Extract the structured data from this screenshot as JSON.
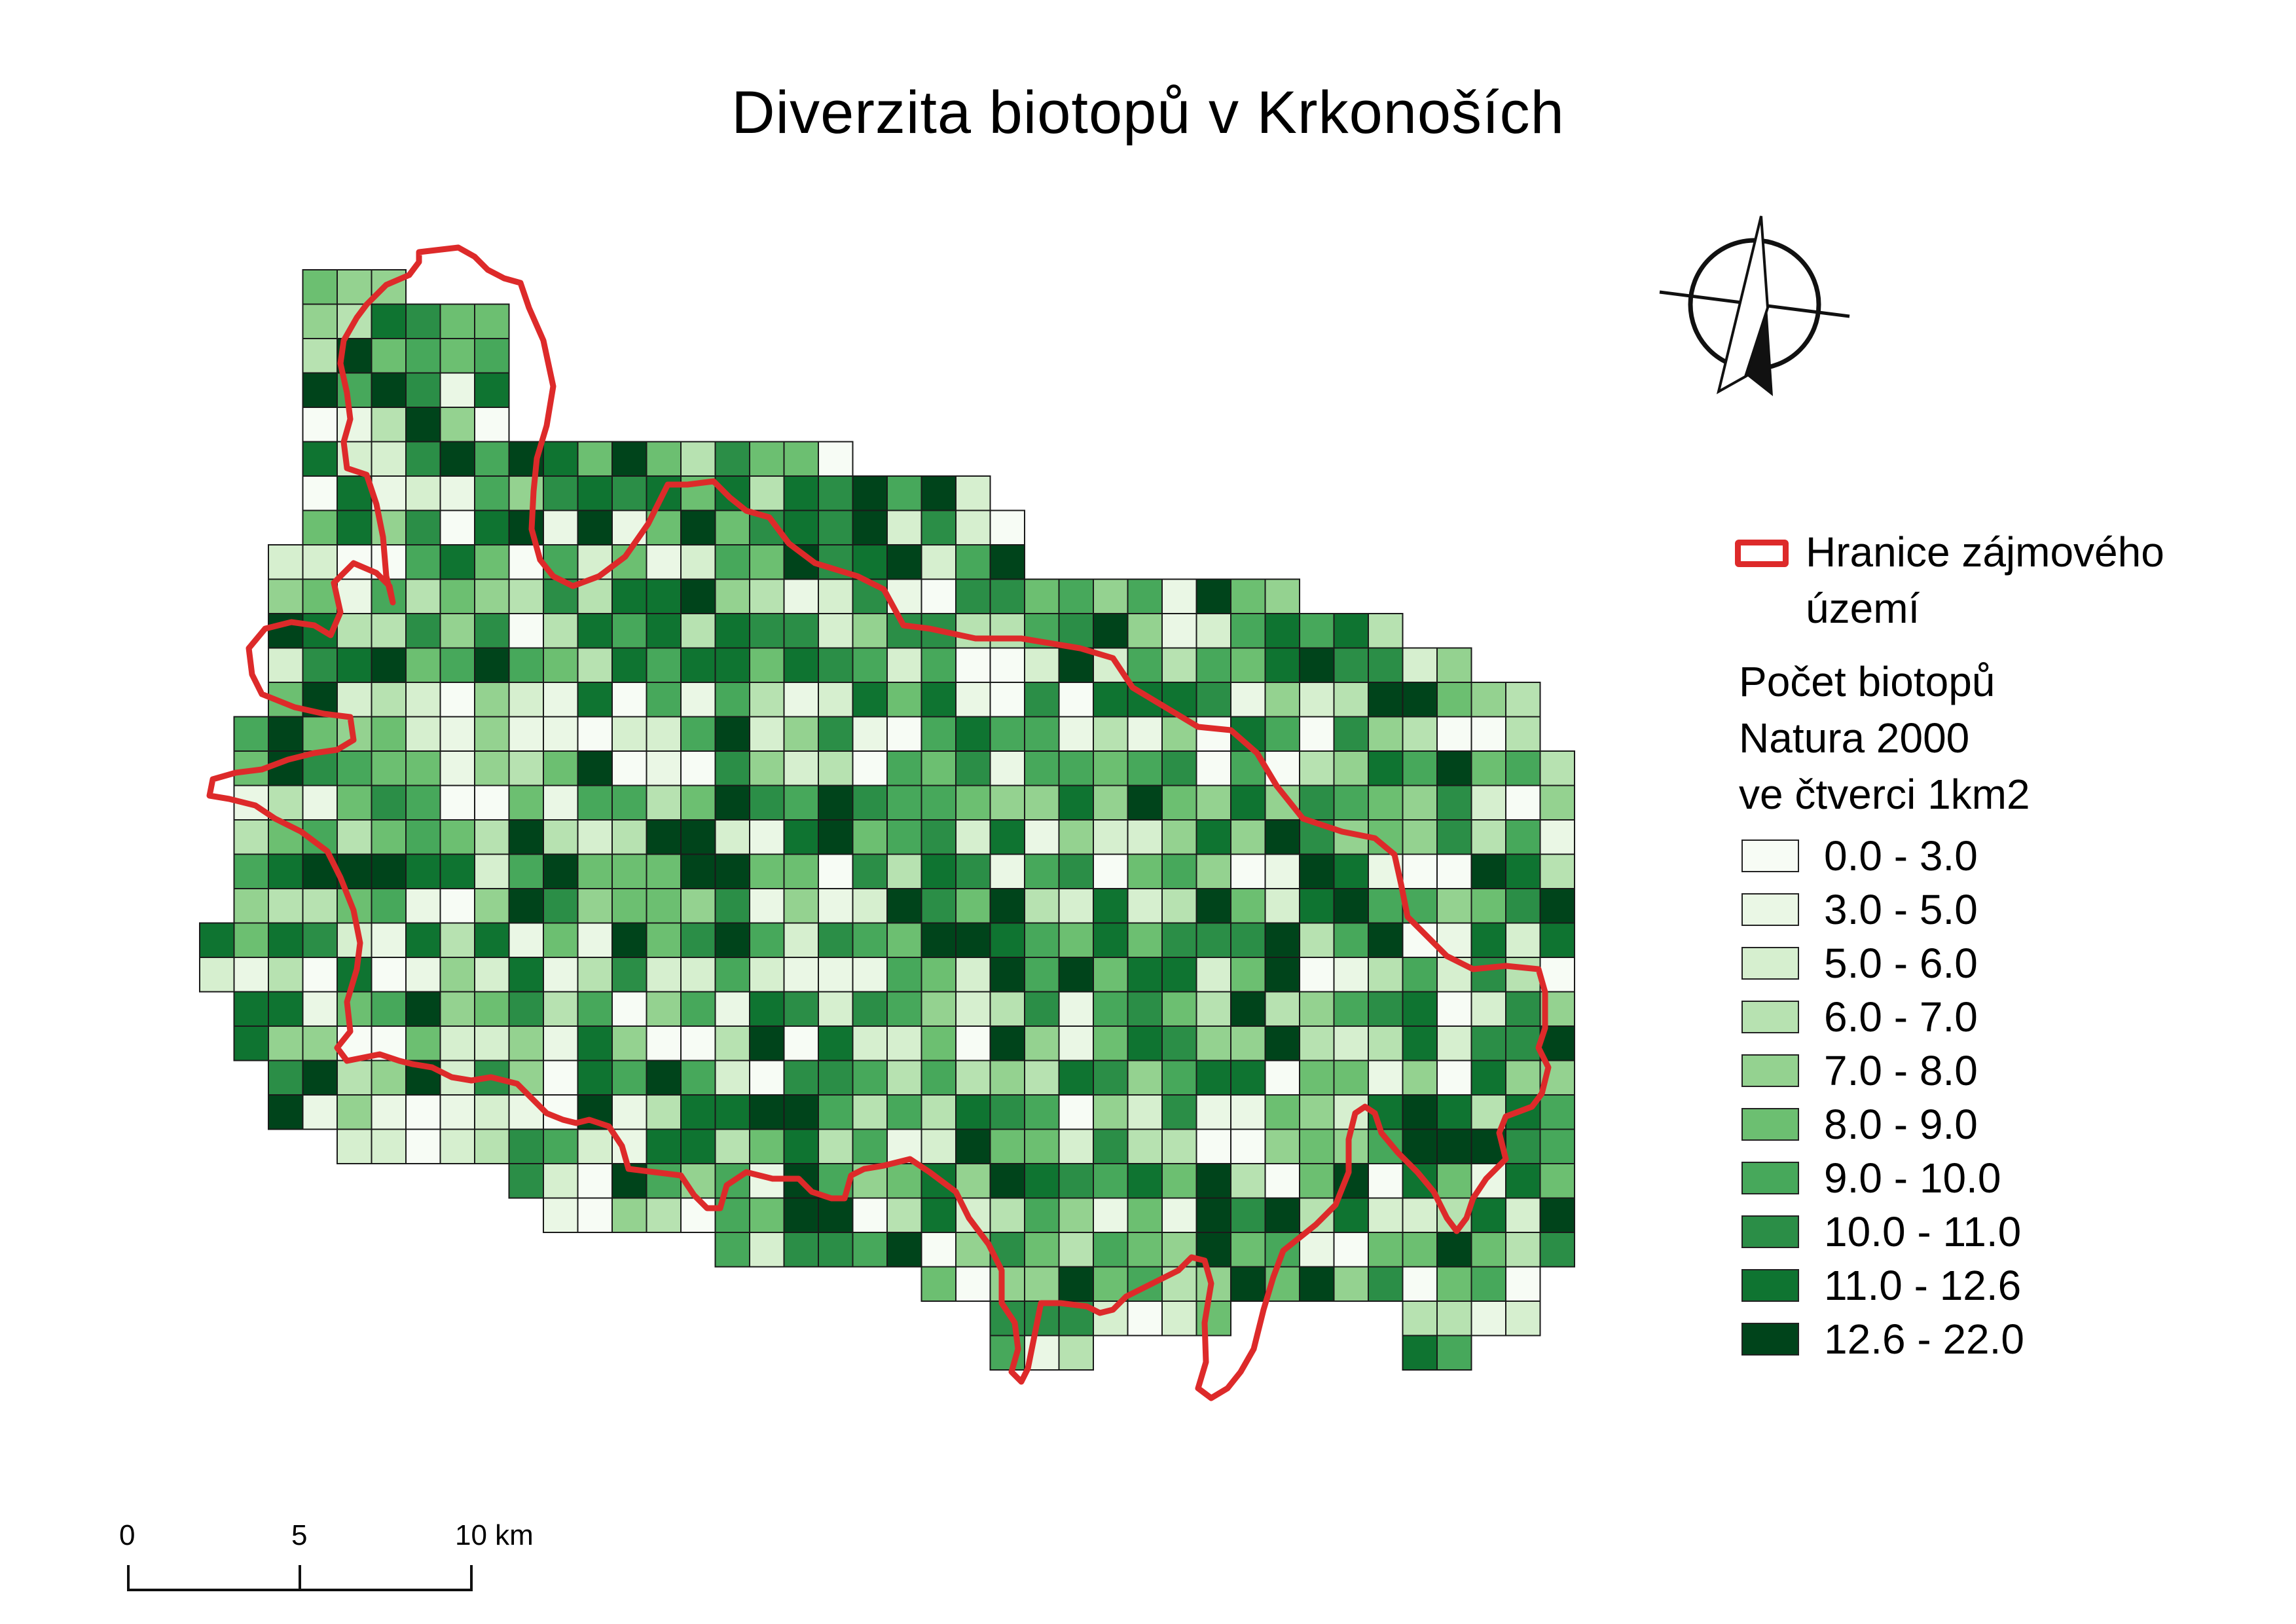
{
  "title": "Diverzita biotopů v Krkonoších",
  "legend": {
    "boundary_label": "Hranice zájmového území",
    "boundary_color": "#dd2a2a",
    "heading": "Počet biotopů\n Natura 2000\n ve čtverci 1km2",
    "classes": [
      {
        "label": "0.0 - 3.0",
        "color": "#f7fcf5"
      },
      {
        "label": "3.0 - 5.0",
        "color": "#eaf7e5"
      },
      {
        "label": "5.0 - 6.0",
        "color": "#d6efcf"
      },
      {
        "label": "6.0 - 7.0",
        "color": "#b7e2b1"
      },
      {
        "label": "7.0 - 8.0",
        "color": "#94d290"
      },
      {
        "label": "8.0 - 9.0",
        "color": "#6cbf71"
      },
      {
        "label": "9.0 - 10.0",
        "color": "#47a85b"
      },
      {
        "label": "10.0 - 11.0",
        "color": "#2b8e47"
      },
      {
        "label": "11.0 - 12.6",
        "color": "#0f7431"
      },
      {
        "label": "12.6 - 22.0",
        "color": "#00441b"
      }
    ]
  },
  "scale_bar": {
    "labels": [
      "0",
      "5",
      "10 km"
    ]
  },
  "north_arrow": "north-arrow-icon"
}
